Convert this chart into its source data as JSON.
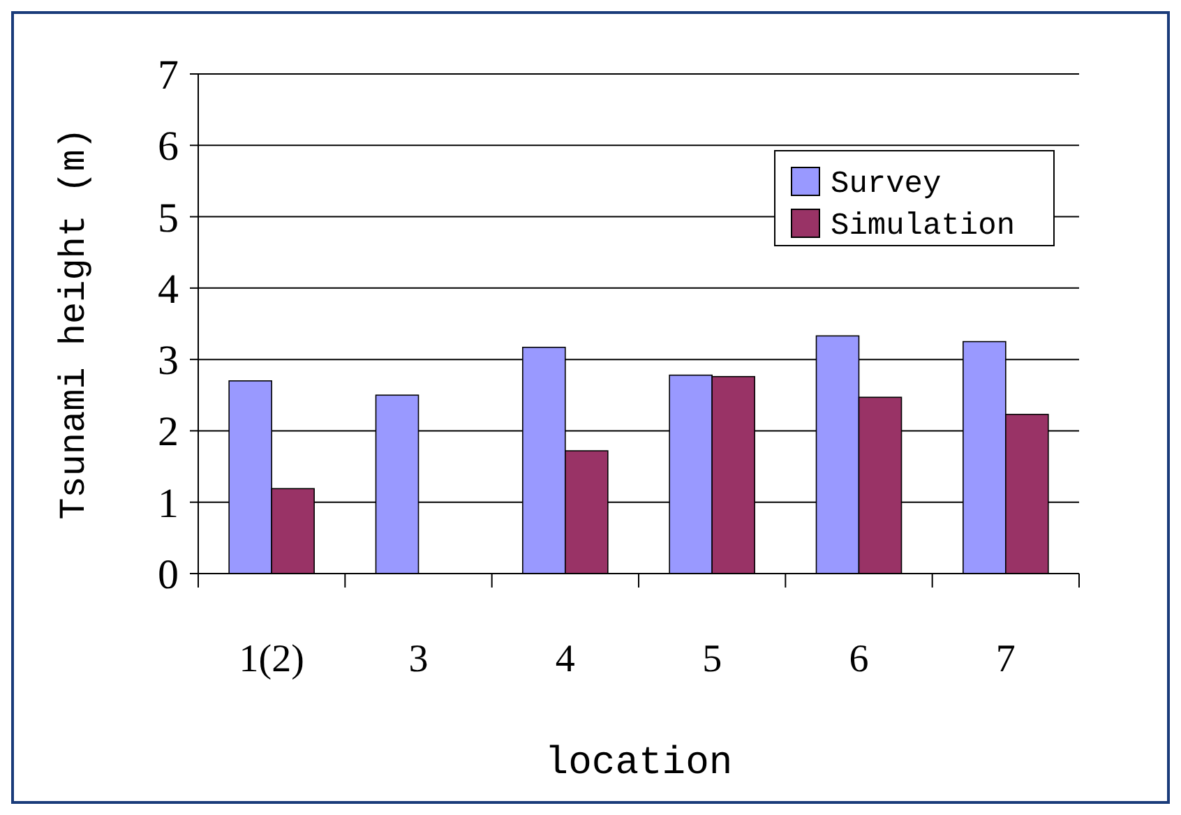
{
  "chart_data": {
    "type": "bar",
    "xlabel": "location",
    "ylabel": "Tsunami height (m)",
    "categories": [
      "1(2)",
      "3",
      "4",
      "5",
      "6",
      "7"
    ],
    "series": [
      {
        "name": "Survey",
        "color": "#9999ff",
        "values": [
          2.7,
          2.5,
          3.17,
          2.78,
          3.33,
          3.25
        ]
      },
      {
        "name": "Simulation",
        "color": "#993366",
        "values": [
          1.19,
          null,
          1.72,
          2.76,
          2.47,
          2.23
        ]
      }
    ],
    "ylim": [
      0,
      7
    ],
    "yticks": [
      0,
      1,
      2,
      3,
      4,
      5,
      6,
      7
    ],
    "grid": "y",
    "legend": "top right"
  }
}
